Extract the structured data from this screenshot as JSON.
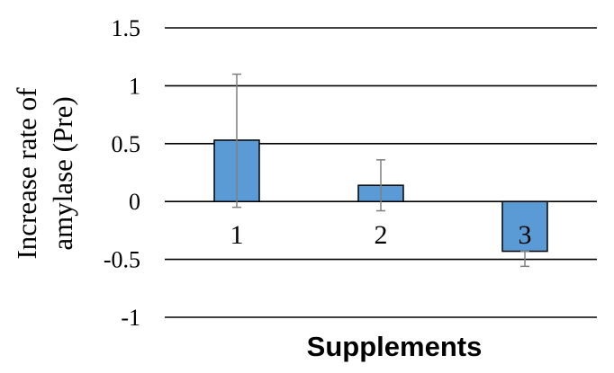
{
  "chart_data": {
    "type": "bar",
    "title": "",
    "xlabel": "Supplements",
    "ylabel_lines": [
      "Increase rate of",
      "amylase (Pre)"
    ],
    "categories": [
      "1",
      "2",
      "3"
    ],
    "values": [
      0.53,
      0.14,
      -0.43
    ],
    "error_upper": [
      1.1,
      0.36,
      -0.43
    ],
    "error_lower": [
      -0.05,
      -0.08,
      -0.56
    ],
    "yticks": [
      1.5,
      1,
      0.5,
      0,
      -0.5,
      -1
    ],
    "ytick_labels": [
      "1.5",
      "1",
      "0.5",
      "0",
      "-0.5",
      "-1"
    ],
    "ylim": [
      -1,
      1.5
    ],
    "grid": true,
    "bar_color": "#5b9bd5",
    "bar_edge_color": "#000000",
    "errorbar_color": "#7f7f7f"
  }
}
